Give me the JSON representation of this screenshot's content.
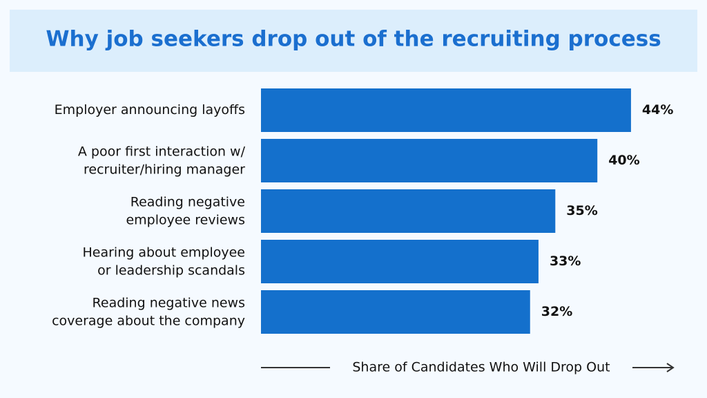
{
  "chart_data": {
    "type": "bar",
    "orientation": "horizontal",
    "title": "Why job seekers drop out of the recruiting process",
    "x_label": "Share of Candidates Who Will Drop Out",
    "categories": [
      "Employer announcing layoffs",
      "A poor first interaction w/\nrecruiter/hiring manager",
      "Reading negative\nemployee reviews",
      "Hearing about employee\nor leadership scandals",
      "Reading negative news\ncoverage about the company"
    ],
    "values": [
      44,
      40,
      35,
      33,
      32
    ],
    "value_labels": [
      "44%",
      "40%",
      "35%",
      "33%",
      "32%"
    ],
    "color": "#1470cc"
  }
}
